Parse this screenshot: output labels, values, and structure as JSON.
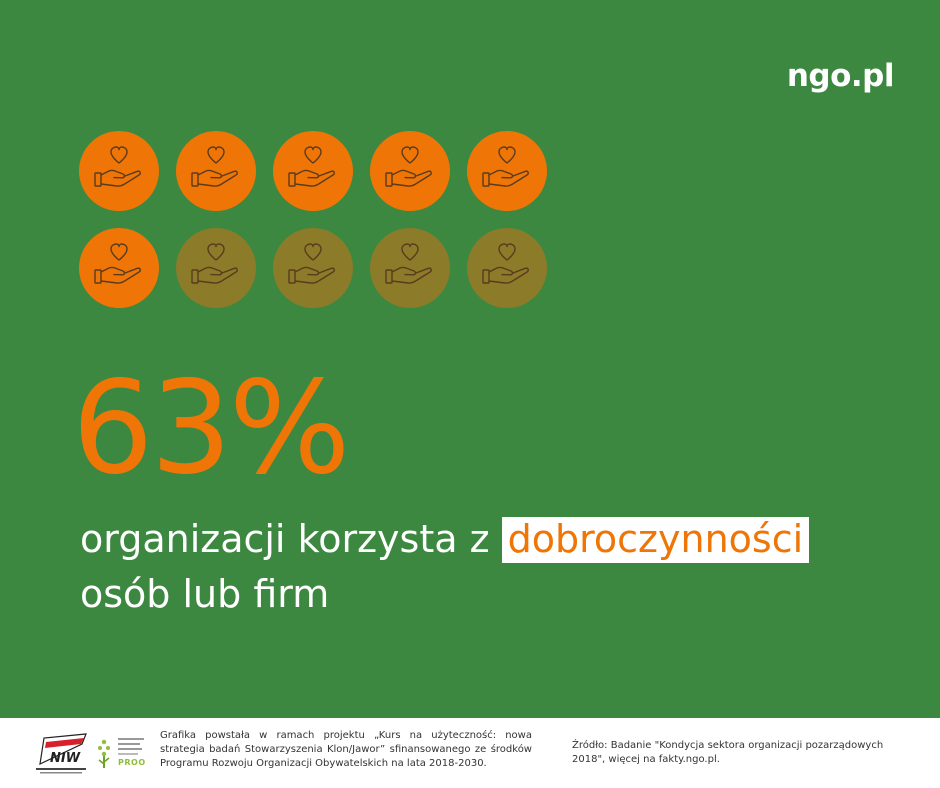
{
  "brand": "ngo.pl",
  "colors": {
    "background": "#3d8840",
    "accent": "#ef7606",
    "inactive": "#8c7b28",
    "text": "#ffffff"
  },
  "icons": {
    "name": "hand-heart-icon",
    "total": 10,
    "highlighted": 6
  },
  "stat": {
    "value": "63%",
    "text_before": "organizacji korzysta z ",
    "text_highlight": "dobroczynności",
    "text_after": "osób lub firm"
  },
  "footer": {
    "note": "Grafika powstała w ramach projektu „Kurs na użyteczność: nowa strategia badań Stowarzyszenia Klon/Jawor” sfinansowanego ze środków Programu Rozwoju Organizacji Obywatelskich na lata 2018-2030.",
    "source": "Źródło: Badanie \"Kondycja sektora organizacji pozarządowych 2018\", więcej na fakty.ngo.pl.",
    "logo_niw": "NIW",
    "logo_proo": "PROO"
  }
}
